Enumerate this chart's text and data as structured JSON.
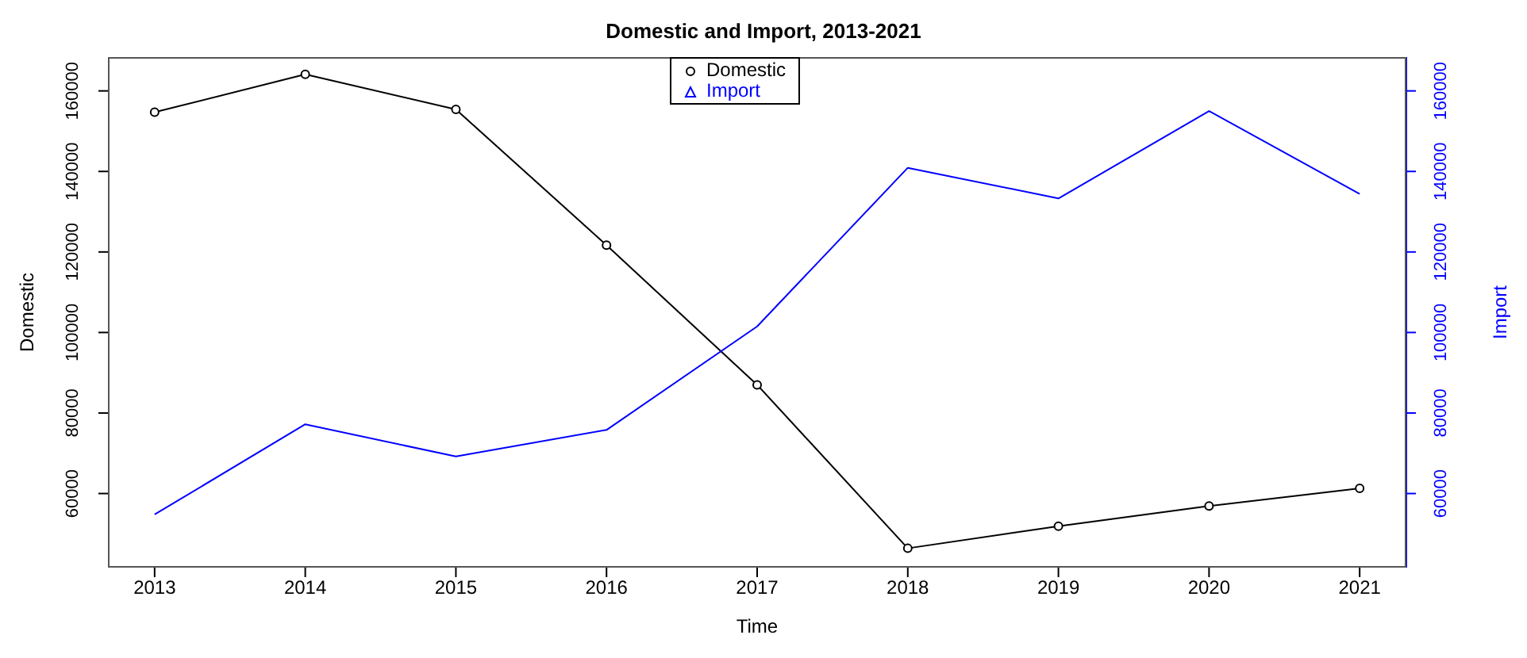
{
  "chart_data": {
    "type": "line",
    "title": "Domestic and Import, 2013-2021",
    "xlabel": "Time",
    "ylabel": "Domestic",
    "y2label": "Import",
    "x": [
      2013,
      2014,
      2015,
      2016,
      2017,
      2018,
      2019,
      2020,
      2021
    ],
    "xlim": [
      2012.69,
      2021.31
    ],
    "xticks": [
      2013,
      2014,
      2015,
      2016,
      2017,
      2018,
      2019,
      2020,
      2021
    ],
    "ylim": [
      41600,
      168400
    ],
    "yticks": [
      60000,
      80000,
      100000,
      120000,
      140000,
      160000
    ],
    "y2lim": [
      41600,
      168400
    ],
    "y2ticks": [
      60000,
      80000,
      100000,
      120000,
      140000,
      160000
    ],
    "series": [
      {
        "name": "Domestic",
        "color": "#000000",
        "marker": "circle",
        "values": [
          154700,
          164100,
          155400,
          121700,
          87000,
          46400,
          51900,
          56900,
          61300
        ]
      },
      {
        "name": "Import",
        "color": "#0000ff",
        "marker": "none",
        "axis": "y2",
        "values": [
          54800,
          77200,
          69200,
          75800,
          101500,
          140900,
          133300,
          155000,
          134400
        ]
      }
    ],
    "legend": "top",
    "grid": false
  }
}
